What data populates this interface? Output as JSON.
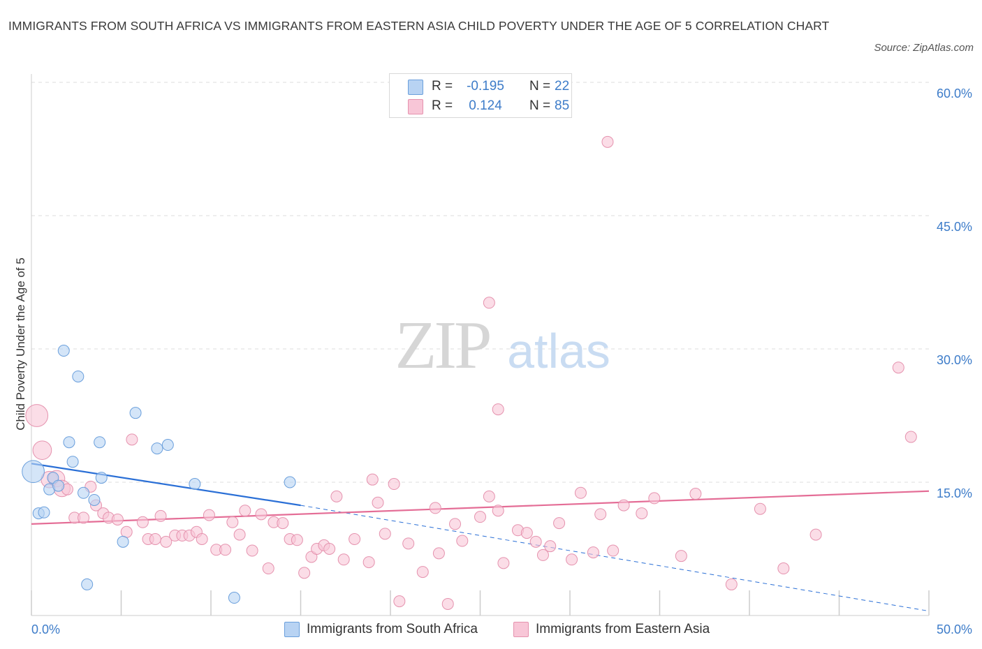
{
  "header": {
    "title": "IMMIGRANTS FROM SOUTH AFRICA VS IMMIGRANTS FROM EASTERN ASIA CHILD POVERTY UNDER THE AGE OF 5 CORRELATION CHART",
    "source": "Source: ZipAtlas.com"
  },
  "watermark": {
    "zip": "ZIP",
    "atlas": "atlas"
  },
  "legend": {
    "r_label": "R =",
    "n_label": "N =",
    "series": [
      {
        "name": "Immigrants from South Africa",
        "r": "-0.195",
        "n": "22",
        "fill": "#b8d3f3",
        "stroke": "#6a9fdc"
      },
      {
        "name": "Immigrants from Eastern Asia",
        "r": "0.124",
        "n": "85",
        "fill": "#f8c6d7",
        "stroke": "#e592ae"
      }
    ]
  },
  "colors": {
    "blue_fill": "#b8d3f3",
    "blue_stroke": "#6a9fdc",
    "blue_line": "#2a6fd6",
    "pink_fill": "#f8c6d7",
    "pink_stroke": "#e592ae",
    "pink_line": "#e46d96",
    "grid": "#dcdcdc",
    "axis_text": "#3d7cc9"
  },
  "chart_data": {
    "type": "scatter",
    "title": "IMMIGRANTS FROM SOUTH AFRICA VS IMMIGRANTS FROM EASTERN ASIA CHILD POVERTY UNDER THE AGE OF 5 CORRELATION CHART",
    "xlabel": "",
    "ylabel": "Child Poverty Under the Age of 5",
    "xlim": [
      0,
      50
    ],
    "ylim": [
      0,
      60
    ],
    "x_tick_labels": [
      {
        "value": 0,
        "label": "0.0%"
      },
      {
        "value": 50,
        "label": "50.0%"
      }
    ],
    "y_tick_labels": [
      {
        "value": 15,
        "label": "15.0%"
      },
      {
        "value": 30,
        "label": "30.0%"
      },
      {
        "value": 45,
        "label": "45.0%"
      },
      {
        "value": 60,
        "label": "60.0%"
      }
    ],
    "grid": true,
    "legend_position": "top-center",
    "series": [
      {
        "name": "Immigrants from South Africa",
        "points": [
          [
            0.1,
            16.2,
            3
          ],
          [
            0.4,
            11.5,
            1
          ],
          [
            0.7,
            11.6,
            1
          ],
          [
            1.0,
            14.2,
            1
          ],
          [
            1.2,
            15.5,
            1
          ],
          [
            1.5,
            14.6,
            1
          ],
          [
            1.8,
            29.8,
            1
          ],
          [
            2.1,
            19.5,
            1
          ],
          [
            2.3,
            17.3,
            1
          ],
          [
            2.6,
            26.9,
            1
          ],
          [
            2.9,
            13.8,
            1
          ],
          [
            3.1,
            3.5,
            1
          ],
          [
            3.5,
            13.0,
            1
          ],
          [
            3.8,
            19.5,
            1
          ],
          [
            3.9,
            15.5,
            1
          ],
          [
            5.1,
            8.3,
            1
          ],
          [
            5.8,
            22.8,
            1
          ],
          [
            7.0,
            18.8,
            1
          ],
          [
            7.6,
            19.2,
            1
          ],
          [
            9.1,
            14.8,
            1
          ],
          [
            11.3,
            2.0,
            1
          ],
          [
            14.4,
            15.0,
            1
          ]
        ],
        "trend": {
          "x0": 0,
          "y0": 17.1,
          "x1": 15.0,
          "y1": 12.4,
          "dash_x1": 50,
          "dash_y1": 0.5
        }
      },
      {
        "name": "Immigrants from Eastern Asia",
        "points": [
          [
            0.3,
            22.5,
            3
          ],
          [
            0.6,
            18.6,
            2
          ],
          [
            1.0,
            15.3,
            1.5
          ],
          [
            1.4,
            15.4,
            1.5
          ],
          [
            1.7,
            14.3,
            1.5
          ],
          [
            2.0,
            14.2,
            1
          ],
          [
            2.4,
            11.0,
            1
          ],
          [
            2.9,
            11.0,
            1
          ],
          [
            3.3,
            14.5,
            1
          ],
          [
            3.6,
            12.4,
            1
          ],
          [
            4.0,
            11.5,
            1
          ],
          [
            4.3,
            11.0,
            1
          ],
          [
            4.8,
            10.8,
            1
          ],
          [
            5.3,
            9.4,
            1
          ],
          [
            5.6,
            19.8,
            1
          ],
          [
            6.2,
            10.5,
            1
          ],
          [
            6.5,
            8.6,
            1
          ],
          [
            6.9,
            8.6,
            1
          ],
          [
            7.2,
            11.2,
            1
          ],
          [
            7.5,
            8.3,
            1
          ],
          [
            8.0,
            9.0,
            1
          ],
          [
            8.4,
            9.0,
            1
          ],
          [
            8.8,
            9.0,
            1
          ],
          [
            9.2,
            9.4,
            1
          ],
          [
            9.5,
            8.6,
            1
          ],
          [
            9.9,
            11.3,
            1
          ],
          [
            10.3,
            7.4,
            1
          ],
          [
            10.8,
            7.4,
            1
          ],
          [
            11.2,
            10.5,
            1
          ],
          [
            11.6,
            9.1,
            1
          ],
          [
            11.9,
            11.8,
            1
          ],
          [
            12.3,
            7.3,
            1
          ],
          [
            12.8,
            11.4,
            1
          ],
          [
            13.2,
            5.3,
            1
          ],
          [
            13.5,
            10.5,
            1
          ],
          [
            14.0,
            10.4,
            1
          ],
          [
            14.4,
            8.6,
            1
          ],
          [
            14.8,
            8.5,
            1
          ],
          [
            15.2,
            4.8,
            1
          ],
          [
            15.6,
            6.6,
            1
          ],
          [
            15.9,
            7.5,
            1
          ],
          [
            16.3,
            7.9,
            1
          ],
          [
            16.6,
            7.5,
            1
          ],
          [
            17.0,
            13.4,
            1
          ],
          [
            17.4,
            6.3,
            1
          ],
          [
            18.0,
            8.6,
            1
          ],
          [
            18.8,
            6.0,
            1
          ],
          [
            19.0,
            15.3,
            1
          ],
          [
            19.3,
            12.7,
            1
          ],
          [
            19.7,
            9.2,
            1
          ],
          [
            20.2,
            14.8,
            1
          ],
          [
            20.5,
            1.6,
            1
          ],
          [
            21.0,
            8.1,
            1
          ],
          [
            21.8,
            4.9,
            1
          ],
          [
            22.5,
            12.1,
            1
          ],
          [
            22.7,
            7.0,
            1
          ],
          [
            23.2,
            1.3,
            1
          ],
          [
            23.6,
            10.3,
            1
          ],
          [
            24.0,
            8.4,
            1
          ],
          [
            25.0,
            11.1,
            1
          ],
          [
            25.5,
            13.4,
            1
          ],
          [
            26.0,
            11.8,
            1
          ],
          [
            26.3,
            5.9,
            1
          ],
          [
            27.1,
            9.6,
            1
          ],
          [
            27.6,
            9.3,
            1
          ],
          [
            28.1,
            8.3,
            1
          ],
          [
            28.5,
            6.8,
            1
          ],
          [
            28.9,
            7.8,
            1
          ],
          [
            29.4,
            10.4,
            1
          ],
          [
            30.1,
            6.3,
            1
          ],
          [
            30.6,
            13.8,
            1
          ],
          [
            31.3,
            7.1,
            1
          ],
          [
            31.7,
            11.4,
            1
          ],
          [
            32.4,
            7.3,
            1
          ],
          [
            33.0,
            12.4,
            1
          ],
          [
            34.0,
            11.5,
            1
          ],
          [
            34.7,
            13.2,
            1
          ],
          [
            36.2,
            6.7,
            1
          ],
          [
            37.0,
            13.7,
            1
          ],
          [
            39.0,
            3.5,
            1
          ],
          [
            40.6,
            12.0,
            1
          ],
          [
            41.9,
            5.3,
            1
          ],
          [
            43.7,
            9.1,
            1
          ],
          [
            48.3,
            27.9,
            1
          ],
          [
            49.0,
            20.1,
            1
          ]
        ],
        "trend": {
          "x0": 0,
          "y0": 10.3,
          "x1": 50,
          "y1": 14.0
        }
      }
    ],
    "extra_points": [
      {
        "series": 1,
        "x": 32.1,
        "y": 53.3
      },
      {
        "series": 1,
        "x": 25.5,
        "y": 35.2
      },
      {
        "series": 1,
        "x": 26.0,
        "y": 23.2
      }
    ]
  },
  "bottom_legend": {
    "items": [
      "Immigrants from South Africa",
      "Immigrants from Eastern Asia"
    ]
  }
}
